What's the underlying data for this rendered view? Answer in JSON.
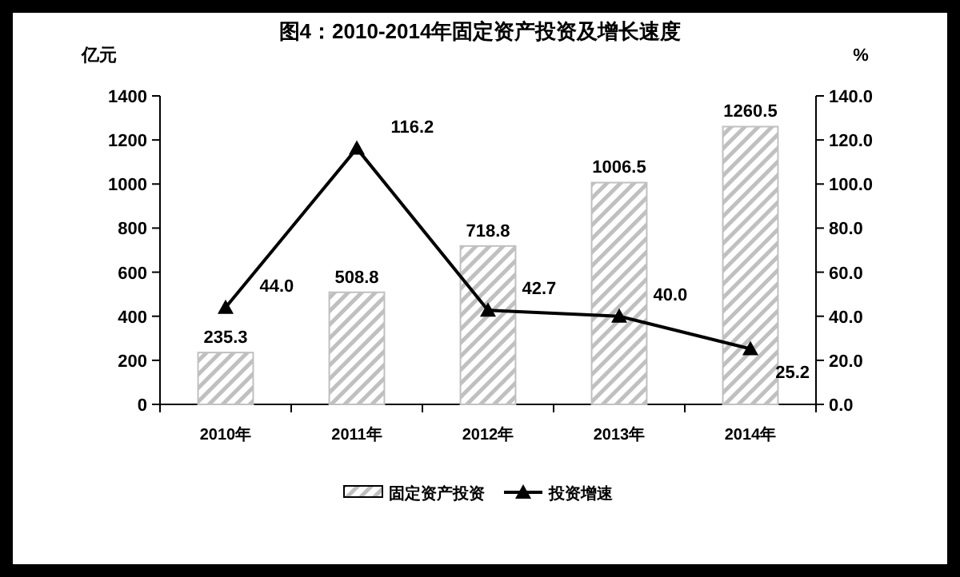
{
  "chart_data": {
    "type": "bar",
    "title": "图4：2010-2014年固定资产投资及增长速度",
    "ylabel": "亿元",
    "y2label": "%",
    "categories": [
      "2010年",
      "2011年",
      "2012年",
      "2013年",
      "2014年"
    ],
    "series": [
      {
        "name": "固定资产投资",
        "color": "#c0c0c0",
        "values": [
          235.3,
          508.8,
          718.8,
          1006.5,
          1260.5
        ],
        "value_labels": [
          "235.3",
          "508.8",
          "718.8",
          "1006.5",
          "1260.5"
        ]
      },
      {
        "name": "投资增速",
        "type": "line",
        "axis": "y2",
        "color": "#000000",
        "values": [
          44.0,
          116.2,
          42.7,
          40.0,
          25.2
        ],
        "value_labels": [
          "44.0",
          "116.2",
          "42.7",
          "40.0",
          "25.2"
        ]
      }
    ],
    "ylim": [
      0,
      1400
    ],
    "yticks": [
      0,
      200,
      400,
      600,
      800,
      1000,
      1200,
      1400
    ],
    "y2lim": [
      0,
      140
    ],
    "y2ticks": [
      {
        "value": 0,
        "label": "0.0"
      },
      {
        "value": 20,
        "label": "20.0"
      },
      {
        "value": 40,
        "label": "40.0"
      },
      {
        "value": 60,
        "label": "60.0"
      },
      {
        "value": 80,
        "label": "80.0"
      },
      {
        "value": 100,
        "label": "100.0"
      },
      {
        "value": 120,
        "label": "120.0"
      },
      {
        "value": 140,
        "label": "140.0"
      }
    ],
    "marker": "triangle",
    "line_style": "solid",
    "legend": "bottom",
    "grid": false
  }
}
